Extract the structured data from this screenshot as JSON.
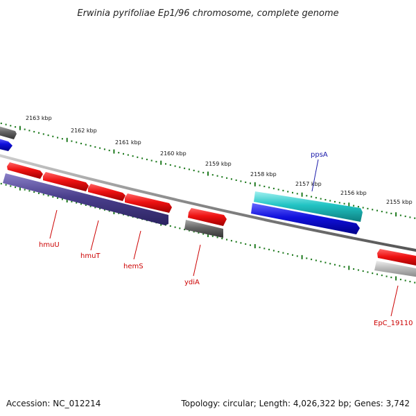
{
  "title": "Erwinia pyrifoliae Ep1/96 chromosome, complete genome",
  "footer": {
    "accession": "Accession: NC_012214",
    "summary": "Topology: circular; Length: 4,026,322 bp; Genes: 3,742"
  },
  "colors": {
    "tick": "#1f7a1f",
    "backbone": "#888888",
    "label_red": "#cc0000",
    "label_blue": "#1a1aaa",
    "red_gene": "#ee1111",
    "indigo_gene": "#4a3f8c",
    "gray_gene": "#666666",
    "light_gray_gene": "#bbbbbb",
    "blue_gene": "#1111dd",
    "cyan_gene": "#22c4c4"
  },
  "scale_labels": [
    {
      "kbp": 2163,
      "text": "2163 kbp"
    },
    {
      "kbp": 2162,
      "text": "2162 kbp"
    },
    {
      "kbp": 2161,
      "text": "2161 kbp"
    },
    {
      "kbp": 2160,
      "text": "2160 kbp"
    },
    {
      "kbp": 2159,
      "text": "2159 kbp"
    },
    {
      "kbp": 2158,
      "text": "2158 kbp"
    },
    {
      "kbp": 2157,
      "text": "2157 kbp"
    },
    {
      "kbp": 2156,
      "text": "2156 kbp"
    },
    {
      "kbp": 2155,
      "text": "2155 kbp"
    }
  ],
  "gene_labels": [
    {
      "text": "hmuU",
      "color": "red"
    },
    {
      "text": "hmuT",
      "color": "red"
    },
    {
      "text": "hemS",
      "color": "red"
    },
    {
      "text": "ydiA",
      "color": "red"
    },
    {
      "text": "ppsA",
      "color": "blue"
    },
    {
      "text": "EpC_19110",
      "color": "red"
    }
  ]
}
